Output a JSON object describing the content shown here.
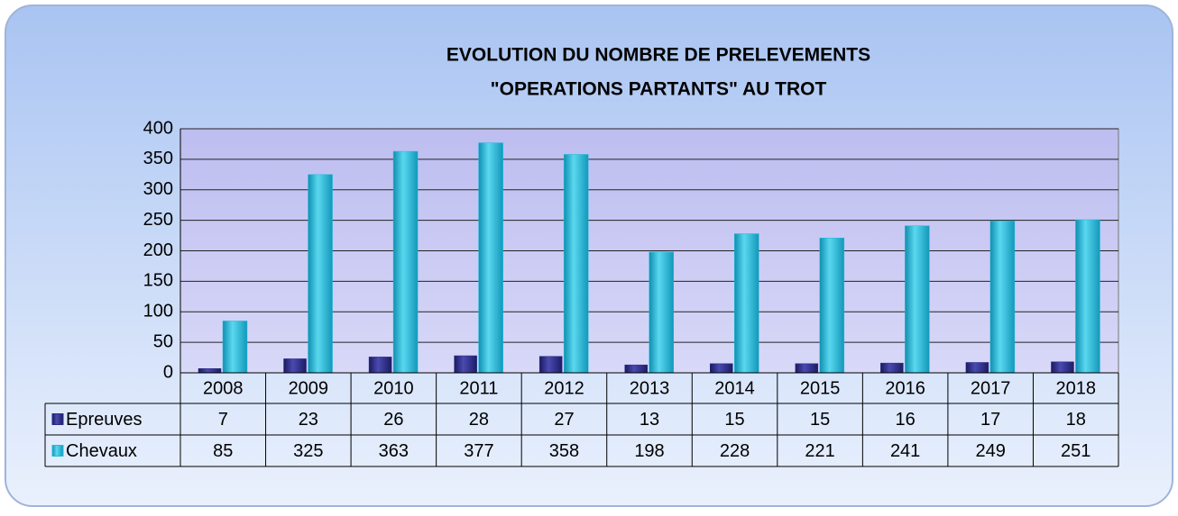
{
  "chart_data": {
    "type": "bar",
    "title": [
      "EVOLUTION DU NOMBRE DE PRELEVEMENTS",
      "\"OPERATIONS PARTANTS\" AU TROT"
    ],
    "categories": [
      "2008",
      "2009",
      "2010",
      "2011",
      "2012",
      "2013",
      "2014",
      "2015",
      "2016",
      "2017",
      "2018"
    ],
    "series": [
      {
        "name": "Epreuves",
        "color": "#2b2b86",
        "values": [
          7,
          23,
          26,
          28,
          27,
          13,
          15,
          15,
          16,
          17,
          18
        ]
      },
      {
        "name": "Chevaux",
        "color": "#22bcdc",
        "values": [
          85,
          325,
          363,
          377,
          358,
          198,
          228,
          221,
          241,
          249,
          251
        ]
      }
    ],
    "ylim": [
      0,
      400
    ],
    "yticks": [
      0,
      50,
      100,
      150,
      200,
      250,
      300,
      350,
      400
    ],
    "grid": true
  }
}
